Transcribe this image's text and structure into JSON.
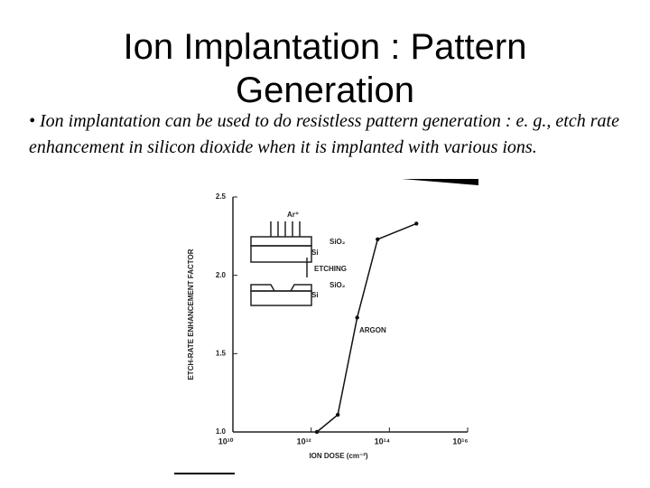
{
  "slide": {
    "title": "Ion Implantation : Pattern Generation",
    "bullet": "• Ion implantation can be used to do resistless pattern generation : e. g., etch rate enhancement in silicon dioxide when it is implanted with various ions."
  },
  "chart_data": {
    "type": "line",
    "x_label": "ION DOSE (cm⁻²)",
    "y_label": "ETCH-RATE ENHANCEMENT FACTOR",
    "annotations": [
      "Ar⁺",
      "SiO₂",
      "Si",
      "ETCHING",
      "SiO₂",
      "Si"
    ],
    "series": [
      {
        "name": "ARGON",
        "color": "#111111",
        "x": [
          1400000000000.0,
          4800000000000.0,
          15000000000000.0,
          50000000000000.0,
          490000000000000.0
        ],
        "values": [
          1.0,
          1.11,
          1.73,
          2.23,
          2.33
        ]
      }
    ],
    "x_log": true,
    "xlim": [
      10000000000.0,
      1e+16
    ],
    "xticks": [
      {
        "value": 10000000000.0,
        "label": "10¹⁰"
      },
      {
        "value": 1000000000000.0,
        "label": "10¹²"
      },
      {
        "value": 100000000000000.0,
        "label": "10¹⁴"
      },
      {
        "value": 1e+16,
        "label": "10¹⁶"
      }
    ],
    "ylim": [
      1.0,
      2.5
    ],
    "yticks": [
      {
        "value": 1.0,
        "label": "1.0"
      },
      1.5,
      {
        "value": 2.0,
        "label": "2.0"
      },
      2.5
    ]
  }
}
